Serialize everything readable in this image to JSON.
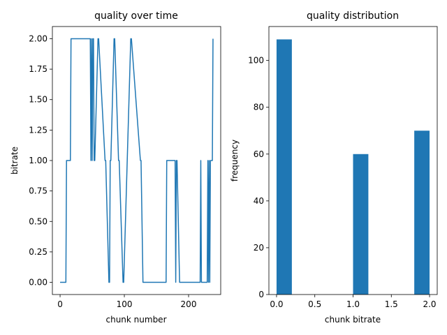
{
  "chart_data": [
    {
      "type": "line",
      "title": "quality over time",
      "xlabel": "chunk number",
      "ylabel": "bitrate",
      "xlim": [
        -12,
        250
      ],
      "ylim": [
        -0.1,
        2.1
      ],
      "xticks": [
        0,
        100,
        200
      ],
      "xtick_labels": [
        "0",
        "100",
        "200"
      ],
      "yticks": [
        0,
        0.25,
        0.5,
        0.75,
        1,
        1.25,
        1.5,
        1.75,
        2
      ],
      "ytick_labels": [
        "0.00",
        "0.25",
        "0.50",
        "0.75",
        "1.00",
        "1.25",
        "1.50",
        "1.75",
        "2.00"
      ],
      "grid": false,
      "series": [
        {
          "color": "#1f77b4",
          "x": [
            0,
            9,
            10,
            16,
            17,
            47,
            48,
            49,
            50,
            51,
            52,
            53,
            54,
            59,
            60,
            70,
            71,
            76,
            77,
            78,
            79,
            84,
            85,
            91,
            92,
            98,
            99,
            110,
            111,
            125,
            126,
            129,
            130,
            165,
            166,
            179,
            180,
            181,
            182,
            186,
            187,
            218,
            219,
            220,
            221,
            229,
            230,
            231,
            232,
            233,
            234,
            237,
            238
          ],
          "y": [
            0,
            0,
            1,
            1,
            2,
            2,
            1,
            2,
            1,
            2,
            2,
            1,
            1,
            2,
            2,
            1,
            1,
            0,
            0,
            1,
            1,
            2,
            2,
            1,
            1,
            0,
            0,
            2,
            2,
            1,
            1,
            0,
            0,
            0,
            1,
            1,
            0,
            1,
            1,
            0,
            0,
            0,
            1,
            0,
            0,
            0,
            1,
            0,
            1,
            0,
            1,
            1,
            2
          ]
        }
      ]
    },
    {
      "type": "bar",
      "title": "quality distribution",
      "xlabel": "chunk bitrate",
      "ylabel": "frequency",
      "xlim": [
        -0.1,
        2.1
      ],
      "ylim": [
        0,
        114.5
      ],
      "xticks": [
        0,
        0.5,
        1,
        1.5,
        2
      ],
      "xtick_labels": [
        "0.0",
        "0.5",
        "1.0",
        "1.5",
        "2.0"
      ],
      "yticks": [
        0,
        20,
        40,
        60,
        80,
        100
      ],
      "ytick_labels": [
        "0",
        "20",
        "40",
        "60",
        "80",
        "100"
      ],
      "grid": false,
      "color": "#1f77b4",
      "bins": [
        {
          "start": 0.0,
          "end": 0.2,
          "value": 109
        },
        {
          "start": 1.0,
          "end": 1.2,
          "value": 60
        },
        {
          "start": 1.8,
          "end": 2.0,
          "value": 70
        }
      ]
    }
  ]
}
